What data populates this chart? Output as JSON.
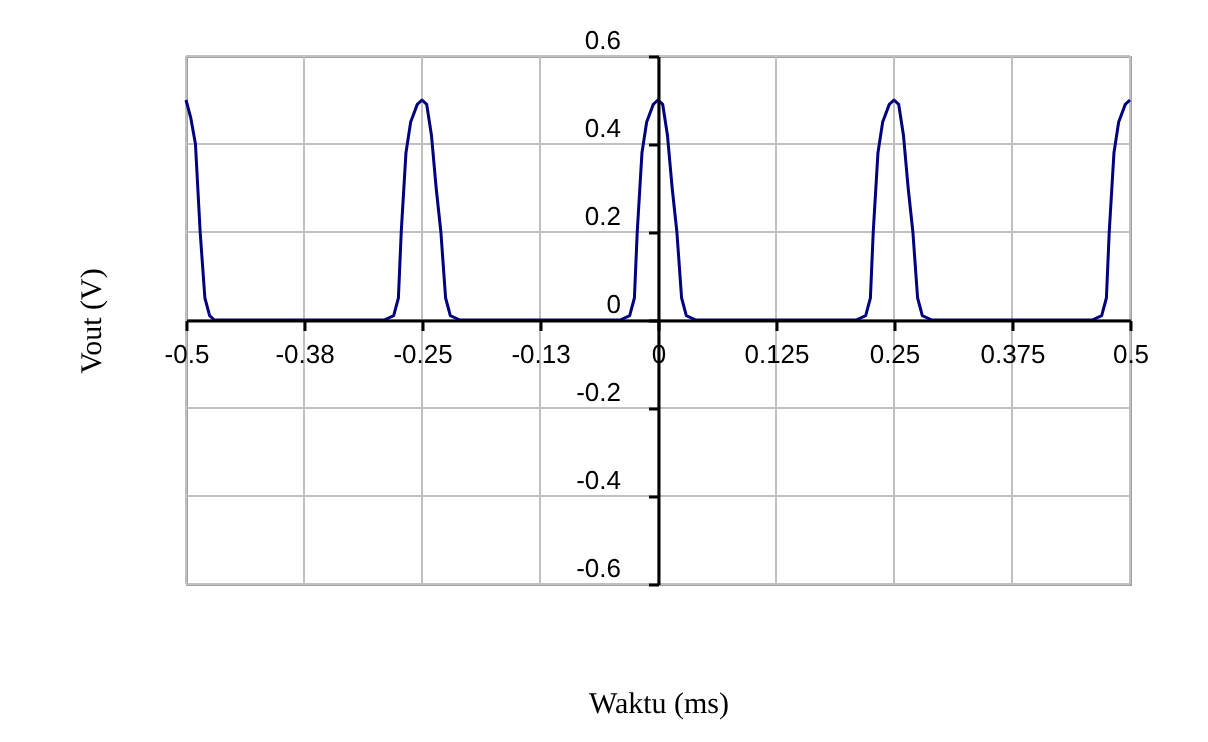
{
  "chart_data": {
    "type": "line",
    "xlabel": "Waktu (ms)",
    "ylabel": "Vout (V)",
    "xlim": [
      -0.5,
      0.5
    ],
    "ylim": [
      -0.6,
      0.6
    ],
    "xticks": [
      -0.5,
      {
        "value": -0.375,
        "label": "-0.38"
      },
      -0.25,
      {
        "value": -0.125,
        "label": "-0.13"
      },
      0,
      0.125,
      0.25,
      0.375,
      0.5
    ],
    "yticks": [
      -0.6,
      -0.4,
      -0.2,
      0,
      0.2,
      0.4,
      0.6
    ],
    "grid": true,
    "marker": "none",
    "line_style": "solid",
    "series": [
      {
        "color": "#000080",
        "x": [
          -0.5,
          -0.495,
          -0.49,
          -0.485,
          -0.48,
          -0.475,
          -0.47,
          -0.46,
          -0.29,
          -0.28,
          -0.275,
          -0.272,
          -0.267,
          -0.262,
          -0.255,
          -0.25,
          -0.245,
          -0.24,
          -0.235,
          -0.23,
          -0.225,
          -0.22,
          -0.21,
          -0.04,
          -0.03,
          -0.025,
          -0.022,
          -0.017,
          -0.012,
          -0.005,
          0,
          0.005,
          0.01,
          0.015,
          0.02,
          0.025,
          0.03,
          0.04,
          0.21,
          0.22,
          0.225,
          0.228,
          0.233,
          0.238,
          0.245,
          0.25,
          0.255,
          0.26,
          0.265,
          0.27,
          0.275,
          0.28,
          0.29,
          0.46,
          0.47,
          0.475,
          0.478,
          0.483,
          0.488,
          0.495,
          0.5
        ],
        "values": [
          0.5,
          0.46,
          0.4,
          0.2,
          0.05,
          0.01,
          0,
          0,
          0,
          0.01,
          0.05,
          0.2,
          0.38,
          0.45,
          0.49,
          0.5,
          0.49,
          0.42,
          0.3,
          0.2,
          0.05,
          0.01,
          0,
          0,
          0.01,
          0.05,
          0.2,
          0.38,
          0.45,
          0.49,
          0.5,
          0.49,
          0.42,
          0.3,
          0.2,
          0.05,
          0.01,
          0,
          0,
          0.01,
          0.05,
          0.2,
          0.38,
          0.45,
          0.49,
          0.5,
          0.49,
          0.42,
          0.3,
          0.2,
          0.05,
          0.01,
          0,
          0,
          0.01,
          0.05,
          0.2,
          0.38,
          0.45,
          0.49,
          0.5
        ]
      }
    ]
  }
}
